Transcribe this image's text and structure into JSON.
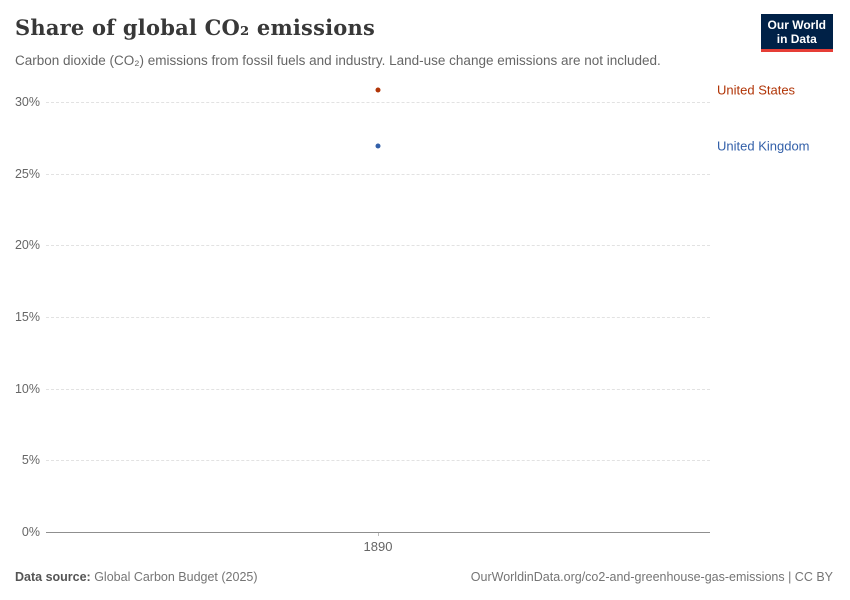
{
  "header": {
    "title": "Share of global CO₂ emissions",
    "subtitle": "Carbon dioxide (CO₂) emissions from fossil fuels and industry. Land-use change emissions are not included.",
    "logo": {
      "line1": "Our World",
      "line2": "in Data",
      "bg_color": "#002147",
      "accent_color": "#e63e36"
    }
  },
  "chart_data": {
    "type": "scatter",
    "x": [
      1890
    ],
    "xticks": [
      "1890"
    ],
    "series": [
      {
        "name": "United States",
        "values": [
          30.8
        ],
        "color": "#b13507"
      },
      {
        "name": "United Kingdom",
        "values": [
          26.9
        ],
        "color": "#3360a9"
      }
    ],
    "title": "Share of global CO₂ emissions",
    "xlabel": "",
    "ylabel": "",
    "ylim": [
      0,
      31.25
    ],
    "yticks": [
      0,
      5,
      10,
      15,
      20,
      25,
      30
    ],
    "ytick_suffix": "%",
    "grid": "horizontal-dashed",
    "legend_position": "right-of-points",
    "gridline_color": "#e2e2e2",
    "axis_line_color": "#8f8f8f"
  },
  "footer": {
    "source_label": "Data source:",
    "source_value": " Global Carbon Budget (2025)",
    "attribution": "OurWorldinData.org/co2-and-greenhouse-gas-emissions | CC BY"
  }
}
